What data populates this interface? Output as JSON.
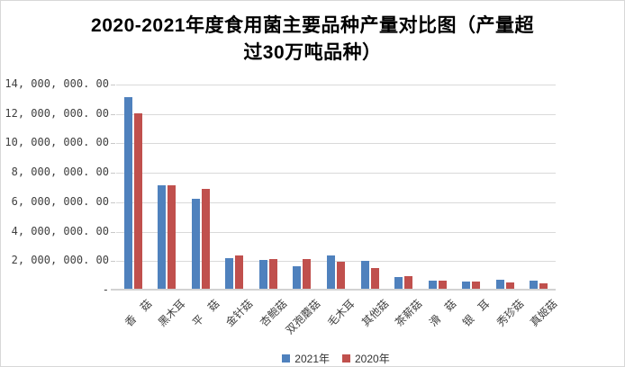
{
  "title": {
    "line1": "2020-2021年度食用菌主要品种产量对比图（产量超",
    "line2": "过30万吨品种）"
  },
  "y_axis": {
    "tick_labels": [
      "14, 000, 000. 00",
      "12, 000, 000. 00",
      "10, 000, 000. 00",
      "8, 000, 000. 00",
      "6, 000, 000. 00",
      "4, 000, 000. 00",
      "2, 000, 000. 00",
      "-"
    ],
    "max": 14000000,
    "min": 0,
    "step": 2000000
  },
  "colors": {
    "series_2021": "#4F81BD",
    "series_2020": "#C0504D",
    "gridline": "#D9D9D9",
    "axis_line": "#D2D2D2",
    "label_text": "#404040",
    "title_text": "#000000",
    "border": "#D8D8D8"
  },
  "chart_data": {
    "type": "bar",
    "title": "2020-2021年度食用菌主要品种产量对比图（产量超过30万吨品种）",
    "categories": [
      "香　菇",
      "黑木耳",
      "平　菇",
      "金针菇",
      "杏鲍菇",
      "双孢蘑菇",
      "毛木耳",
      "其他菇",
      "茶薪菇",
      "滑　菇",
      "银　耳",
      "秀珍菇",
      "真姬菇"
    ],
    "series": [
      {
        "name": "2021年",
        "color": "#4F81BD",
        "values": [
          13000000,
          7060000,
          6090000,
          2070000,
          1950000,
          1530000,
          2260000,
          1870000,
          800000,
          540000,
          510000,
          630000,
          550000
        ]
      },
      {
        "name": "2020年",
        "color": "#C0504D",
        "values": [
          11900000,
          7060000,
          6800000,
          2260000,
          2040000,
          2020000,
          1810000,
          1380000,
          840000,
          580000,
          480000,
          430000,
          370000
        ]
      }
    ],
    "xlabel": "",
    "ylabel": "",
    "ylim": [
      0,
      14000000
    ],
    "y_tick_interval": 2000000,
    "grid": true,
    "legend_position": "bottom"
  }
}
